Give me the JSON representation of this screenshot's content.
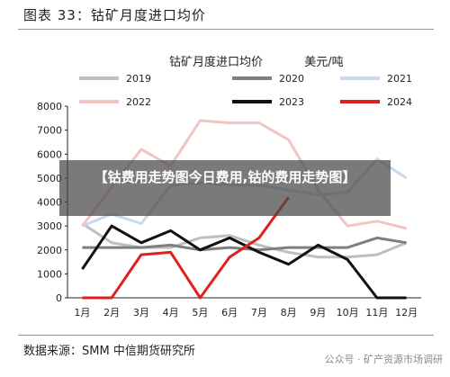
{
  "figure_title": "图表 33：钴矿月度进口均价",
  "source_note": "数据来源：SMM 中信期货研究所",
  "watermark": "公众号 · 矿产资源市场调研",
  "overlay_text": "【钴费用走势图今日费用,钴的费用走势图】",
  "chart_data": {
    "type": "line",
    "title": "钴矿月度进口均价",
    "unit_label": "美元/吨",
    "categories": [
      "1月",
      "2月",
      "3月",
      "4月",
      "5月",
      "6月",
      "7月",
      "8月",
      "9月",
      "10月",
      "11月",
      "12月"
    ],
    "ylim": [
      0,
      8000
    ],
    "yticks": [
      0,
      1000,
      2000,
      3000,
      4000,
      5000,
      6000,
      7000,
      8000
    ],
    "grid": false,
    "legend_position": "top",
    "series": [
      {
        "name": "2019",
        "color": "#bfbfbf",
        "values": [
          3100,
          2300,
          2100,
          2100,
          2500,
          2600,
          2200,
          1900,
          1700,
          1700,
          1800,
          2300
        ]
      },
      {
        "name": "2020",
        "color": "#7f7f7f",
        "values": [
          2100,
          2100,
          2100,
          2200,
          2000,
          2100,
          2000,
          2100,
          2100,
          2100,
          2500,
          2300
        ]
      },
      {
        "name": "2021",
        "color": "#c5d9ef",
        "values": [
          3000,
          3500,
          3100,
          4700,
          4800,
          4700,
          4700,
          4500,
          4300,
          4400,
          5800,
          5000
        ]
      },
      {
        "name": "2022",
        "color": "#f2c4c4",
        "values": [
          3000,
          4600,
          6200,
          5500,
          7400,
          7300,
          7300,
          6600,
          4500,
          3000,
          3200,
          2900
        ]
      },
      {
        "name": "2023",
        "color": "#111111",
        "values": [
          1200,
          3000,
          2300,
          2800,
          2000,
          2500,
          1900,
          1400,
          2200,
          1600,
          0,
          0
        ]
      },
      {
        "name": "2024",
        "color": "#e02020",
        "values": [
          0,
          0,
          1800,
          1900,
          0,
          1700,
          2500,
          4200,
          null,
          null,
          null,
          null
        ]
      }
    ]
  }
}
